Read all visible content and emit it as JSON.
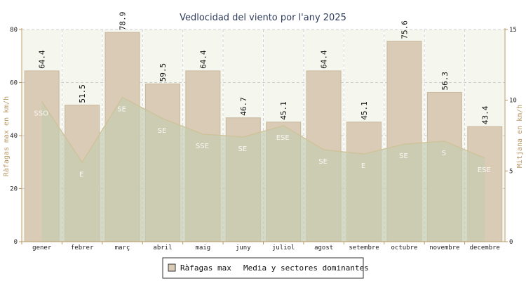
{
  "chart_data": {
    "type": "bar",
    "title": "Vedlocidad del viento por l'any 2025",
    "ylabel_left": "Ràfagas max en km/h",
    "ylabel_right": "Mitjana en km/h",
    "categories": [
      "gener",
      "febrer",
      "març",
      "abril",
      "maig",
      "juny",
      "juliol",
      "agost",
      "setembre",
      "octubre",
      "novembre",
      "decembre"
    ],
    "ylim_left": [
      0,
      80
    ],
    "yticks_left": [
      0,
      20,
      40,
      60,
      80
    ],
    "ylim_right": [
      0,
      15
    ],
    "yticks_right": [
      0,
      5,
      10,
      15
    ],
    "grid": true,
    "legend_position": "bottom",
    "series": [
      {
        "name": "Ràfagas max",
        "type": "bar",
        "axis": "left",
        "values": [
          64.4,
          51.5,
          78.9,
          59.5,
          64.4,
          46.7,
          45.1,
          64.4,
          45.1,
          75.6,
          56.3,
          43.4
        ],
        "color": "#d9cbb5"
      },
      {
        "name": "Media y sectores dominantes",
        "type": "area",
        "axis": "right",
        "values": [
          9.9,
          5.6,
          10.2,
          8.7,
          7.6,
          7.4,
          8.2,
          6.5,
          6.2,
          6.9,
          7.1,
          5.9
        ],
        "directions": [
          "SSO",
          "E",
          "SE",
          "SE",
          "SSE",
          "SE",
          "ESE",
          "SE",
          "E",
          "SE",
          "S",
          "ESE"
        ],
        "color": "#c6ccb2"
      }
    ]
  },
  "colors": {
    "bar_fill": "#d9cbb5",
    "bar_stroke": "#c9b89e",
    "area_fill": "#c6ccb2",
    "area_stroke": "#cfc39c",
    "column_shade": "#eef1e4",
    "grid": "#cfcfcf",
    "axis": "#b79866"
  }
}
